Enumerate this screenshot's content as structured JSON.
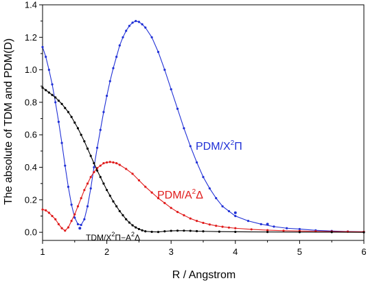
{
  "chart_data": {
    "type": "line",
    "xlabel": "R / Angstrom",
    "ylabel": "The absolute of TDM and PDM(D)",
    "xlim": [
      1,
      6
    ],
    "ylim": [
      -0.05,
      1.4
    ],
    "x_ticks": [
      "1",
      "2",
      "3",
      "4",
      "5",
      "6"
    ],
    "y_ticks": [
      "0.0",
      "0.2",
      "0.4",
      "0.6",
      "0.8",
      "1.0",
      "1.2",
      "1.4"
    ],
    "grid": false,
    "series": [
      {
        "name": "PDM/X²Π",
        "label_main": "PDM/X",
        "label_sup": "2",
        "label_end": "Π",
        "color": "#1f2fd6",
        "points": [
          [
            1.0,
            1.14
          ],
          [
            1.05,
            1.08
          ],
          [
            1.1,
            1.0
          ],
          [
            1.15,
            0.91
          ],
          [
            1.2,
            0.8
          ],
          [
            1.25,
            0.68
          ],
          [
            1.3,
            0.55
          ],
          [
            1.35,
            0.41
          ],
          [
            1.4,
            0.28
          ],
          [
            1.45,
            0.17
          ],
          [
            1.5,
            0.09
          ],
          [
            1.55,
            0.05
          ],
          [
            1.6,
            0.045
          ],
          [
            1.65,
            0.08
          ],
          [
            1.7,
            0.16
          ],
          [
            1.75,
            0.27
          ],
          [
            1.8,
            0.4
          ],
          [
            1.85,
            0.52
          ],
          [
            1.9,
            0.63
          ],
          [
            1.95,
            0.74
          ],
          [
            2.0,
            0.84
          ],
          [
            2.05,
            0.93
          ],
          [
            2.1,
            1.01
          ],
          [
            2.15,
            1.08
          ],
          [
            2.2,
            1.15
          ],
          [
            2.25,
            1.2
          ],
          [
            2.3,
            1.24
          ],
          [
            2.35,
            1.27
          ],
          [
            2.4,
            1.29
          ],
          [
            2.45,
            1.3
          ],
          [
            2.5,
            1.295
          ],
          [
            2.55,
            1.28
          ],
          [
            2.6,
            1.26
          ],
          [
            2.7,
            1.2
          ],
          [
            2.8,
            1.11
          ],
          [
            2.9,
            1.0
          ],
          [
            3.0,
            0.88
          ],
          [
            3.1,
            0.76
          ],
          [
            3.2,
            0.64
          ],
          [
            3.3,
            0.53
          ],
          [
            3.4,
            0.43
          ],
          [
            3.5,
            0.34
          ],
          [
            3.6,
            0.27
          ],
          [
            3.7,
            0.21
          ],
          [
            3.8,
            0.16
          ],
          [
            3.9,
            0.13
          ],
          [
            4.0,
            0.1
          ],
          [
            4.2,
            0.07
          ],
          [
            4.4,
            0.05
          ],
          [
            4.6,
            0.035
          ],
          [
            4.8,
            0.025
          ],
          [
            5.0,
            0.02
          ],
          [
            5.25,
            0.012
          ],
          [
            5.5,
            0.008
          ],
          [
            5.75,
            0.005
          ],
          [
            6.0,
            0.003
          ]
        ],
        "outliers": [
          [
            1.58,
            0.025
          ],
          [
            4.0,
            0.12
          ],
          [
            4.5,
            0.05
          ]
        ]
      },
      {
        "name": "PDM/A²Δ",
        "label_main": "PDM/A",
        "label_sup": "2",
        "label_end": "Δ",
        "color": "#e01b1b",
        "points": [
          [
            1.0,
            0.14
          ],
          [
            1.05,
            0.135
          ],
          [
            1.1,
            0.12
          ],
          [
            1.15,
            0.1
          ],
          [
            1.2,
            0.08
          ],
          [
            1.25,
            0.05
          ],
          [
            1.3,
            0.025
          ],
          [
            1.35,
            0.01
          ],
          [
            1.4,
            0.03
          ],
          [
            1.45,
            0.07
          ],
          [
            1.5,
            0.11
          ],
          [
            1.55,
            0.16
          ],
          [
            1.6,
            0.21
          ],
          [
            1.65,
            0.26
          ],
          [
            1.7,
            0.3
          ],
          [
            1.75,
            0.34
          ],
          [
            1.8,
            0.37
          ],
          [
            1.85,
            0.395
          ],
          [
            1.9,
            0.41
          ],
          [
            1.95,
            0.425
          ],
          [
            2.0,
            0.43
          ],
          [
            2.05,
            0.433
          ],
          [
            2.1,
            0.43
          ],
          [
            2.15,
            0.425
          ],
          [
            2.2,
            0.415
          ],
          [
            2.3,
            0.39
          ],
          [
            2.4,
            0.36
          ],
          [
            2.5,
            0.32
          ],
          [
            2.6,
            0.28
          ],
          [
            2.7,
            0.245
          ],
          [
            2.8,
            0.21
          ],
          [
            2.9,
            0.18
          ],
          [
            3.0,
            0.15
          ],
          [
            3.1,
            0.125
          ],
          [
            3.2,
            0.105
          ],
          [
            3.3,
            0.085
          ],
          [
            3.4,
            0.07
          ],
          [
            3.5,
            0.058
          ],
          [
            3.6,
            0.048
          ],
          [
            3.7,
            0.04
          ],
          [
            3.8,
            0.034
          ],
          [
            3.9,
            0.029
          ],
          [
            4.0,
            0.025
          ],
          [
            4.25,
            0.018
          ],
          [
            4.5,
            0.013
          ],
          [
            4.75,
            0.01
          ],
          [
            5.0,
            0.008
          ],
          [
            5.25,
            0.006
          ],
          [
            5.5,
            0.005
          ],
          [
            5.75,
            0.004
          ],
          [
            6.0,
            0.003
          ]
        ]
      },
      {
        "name": "TDM/X²Π−A²Δ",
        "label_main": "TDM/X",
        "label_sup": "2",
        "label_mid": "Π−A",
        "label_sup2": "2",
        "label_end": "Δ",
        "color": "#000000",
        "points": [
          [
            1.0,
            0.89
          ],
          [
            1.05,
            0.875
          ],
          [
            1.1,
            0.86
          ],
          [
            1.15,
            0.845
          ],
          [
            1.2,
            0.83
          ],
          [
            1.25,
            0.81
          ],
          [
            1.3,
            0.79
          ],
          [
            1.35,
            0.765
          ],
          [
            1.4,
            0.74
          ],
          [
            1.45,
            0.71
          ],
          [
            1.5,
            0.675
          ],
          [
            1.55,
            0.64
          ],
          [
            1.6,
            0.6
          ],
          [
            1.65,
            0.56
          ],
          [
            1.7,
            0.515
          ],
          [
            1.75,
            0.47
          ],
          [
            1.8,
            0.425
          ],
          [
            1.85,
            0.38
          ],
          [
            1.9,
            0.34
          ],
          [
            1.95,
            0.3
          ],
          [
            2.0,
            0.26
          ],
          [
            2.05,
            0.225
          ],
          [
            2.1,
            0.19
          ],
          [
            2.15,
            0.16
          ],
          [
            2.2,
            0.13
          ],
          [
            2.25,
            0.105
          ],
          [
            2.3,
            0.08
          ],
          [
            2.35,
            0.06
          ],
          [
            2.4,
            0.043
          ],
          [
            2.45,
            0.03
          ],
          [
            2.5,
            0.02
          ],
          [
            2.55,
            0.012
          ],
          [
            2.6,
            0.006
          ],
          [
            2.7,
            0.003
          ],
          [
            2.8,
            0.002
          ],
          [
            2.9,
            0.006
          ],
          [
            3.0,
            0.009
          ],
          [
            3.1,
            0.01
          ],
          [
            3.2,
            0.01
          ],
          [
            3.3,
            0.009
          ],
          [
            3.4,
            0.007
          ],
          [
            3.5,
            0.006
          ],
          [
            3.75,
            0.004
          ],
          [
            4.0,
            0.003
          ],
          [
            4.5,
            0.002
          ],
          [
            5.0,
            0.001
          ],
          [
            5.5,
            0.001
          ],
          [
            6.0,
            0.0
          ]
        ]
      }
    ]
  }
}
